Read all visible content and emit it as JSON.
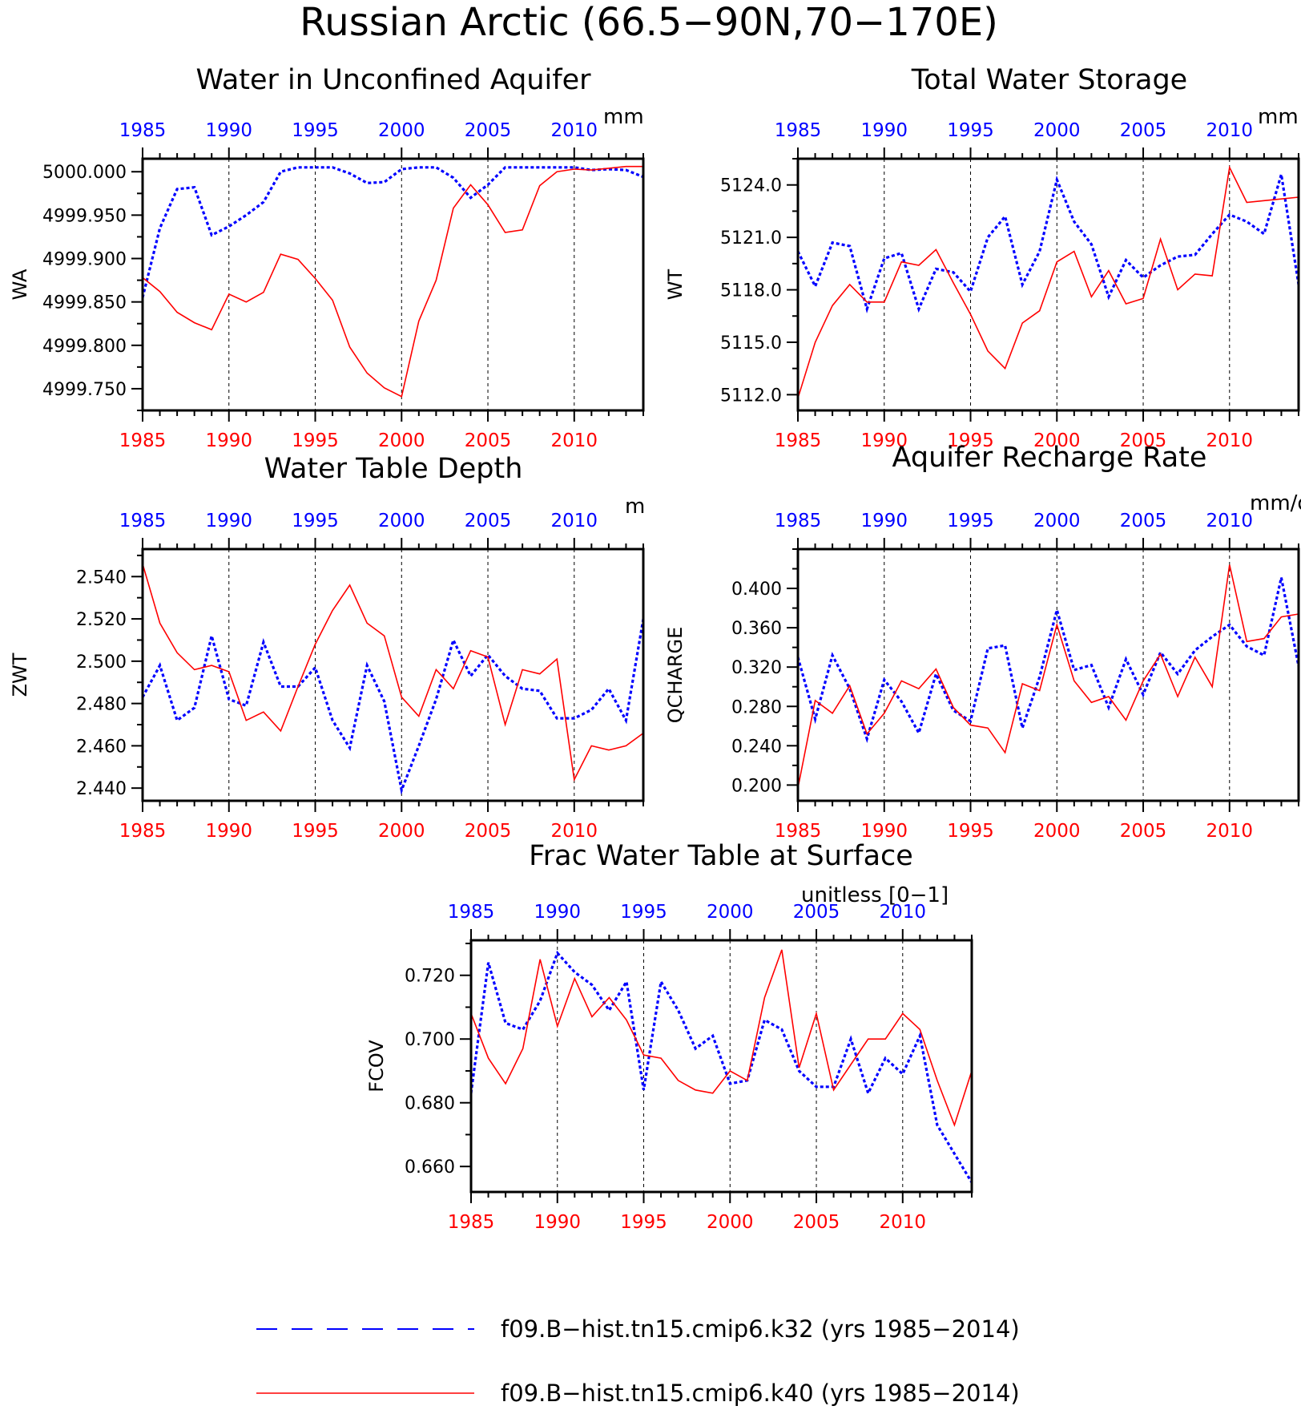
{
  "figure": {
    "title": "Russian Arctic (66.5−90N,70−170E)"
  },
  "legend": {
    "placement": "bottom",
    "entries": [
      {
        "label": "f09.B−hist.tn15.cmip6.k32 (yrs 1985−2014)",
        "color": "#0000ff",
        "style": "dashed"
      },
      {
        "label": "f09.B−hist.tn15.cmip6.k40 (yrs 1985−2014)",
        "color": "#ff0000",
        "style": "solid"
      }
    ]
  },
  "chart_data": [
    {
      "type": "line",
      "title": "Water in Unconfined Aquifer",
      "ylabel": "WA",
      "units": "mm",
      "xlim": [
        1985,
        2014
      ],
      "ylim": [
        4999.725,
        5000.015
      ],
      "yticks": [
        4999.75,
        4999.8,
        4999.85,
        4999.9,
        4999.95,
        5000.0
      ],
      "yticklabels": [
        "4999.750",
        "4999.800",
        "4999.850",
        "4999.900",
        "4999.950",
        "5000.000"
      ],
      "xticks": [
        1985,
        1990,
        1995,
        2000,
        2005,
        2010
      ],
      "xticklabels": [
        "1985",
        "1990",
        "1995",
        "2000",
        "2005",
        "2010"
      ],
      "grid": "vertical dashed at major x ticks",
      "series": [
        {
          "color": "#0000ff",
          "dashed": true,
          "values": [
            4999.855,
            4999.935,
            4999.98,
            4999.982,
            4999.927,
            4999.937,
            4999.95,
            4999.965,
            5000.0,
            5000.005,
            5000.005,
            5000.005,
            4999.998,
            4999.987,
            4999.988,
            5000.003,
            5000.005,
            5000.005,
            4999.993,
            4999.97,
            4999.985,
            5000.005,
            5000.005,
            5000.005,
            5000.005,
            5000.005,
            5000.002,
            5000.003,
            5000.002,
            4999.994
          ]
        },
        {
          "color": "#ff0000",
          "dashed": false,
          "values": [
            4999.878,
            4999.862,
            4999.838,
            4999.826,
            4999.818,
            4999.859,
            4999.85,
            4999.861,
            4999.905,
            4999.899,
            4999.877,
            4999.852,
            4999.798,
            4999.768,
            4999.751,
            4999.741,
            4999.828,
            4999.875,
            4999.958,
            4999.985,
            4999.962,
            4999.93,
            4999.933,
            4999.984,
            5000.0,
            5000.003,
            5000.002,
            5000.004,
            5000.006,
            5000.006
          ]
        }
      ]
    },
    {
      "type": "line",
      "title": "Total Water Storage",
      "ylabel": "WT",
      "units": "mm",
      "xlim": [
        1985,
        2014
      ],
      "ylim": [
        5111.1,
        5125.5
      ],
      "yticks": [
        5112,
        5115,
        5118,
        5121,
        5124
      ],
      "yticklabels": [
        "5112.0",
        "5115.0",
        "5118.0",
        "5121.0",
        "5124.0"
      ],
      "xticks": [
        1985,
        1990,
        1995,
        2000,
        2005,
        2010
      ],
      "xticklabels": [
        "1985",
        "1990",
        "1995",
        "2000",
        "2005",
        "2010"
      ],
      "grid": "vertical dashed at major x ticks",
      "series": [
        {
          "color": "#0000ff",
          "dashed": true,
          "values": [
            5120.2,
            5118.2,
            5120.7,
            5120.5,
            5116.9,
            5119.8,
            5120.1,
            5116.9,
            5119.2,
            5119.0,
            5117.9,
            5121.0,
            5122.2,
            5118.3,
            5120.2,
            5124.3,
            5121.9,
            5120.6,
            5117.6,
            5119.7,
            5118.7,
            5119.4,
            5119.9,
            5120.0,
            5121.2,
            5122.3,
            5121.9,
            5121.2,
            5124.6,
            5118.3
          ]
        },
        {
          "color": "#ff0000",
          "dashed": false,
          "values": [
            5111.8,
            5115.0,
            5117.1,
            5118.3,
            5117.3,
            5117.3,
            5119.6,
            5119.4,
            5120.3,
            5118.4,
            5116.6,
            5114.5,
            5113.5,
            5116.1,
            5116.8,
            5119.6,
            5120.2,
            5117.6,
            5119.1,
            5117.2,
            5117.5,
            5120.9,
            5118.0,
            5118.9,
            5118.8,
            5125.0,
            5123.0,
            5123.1,
            5123.2,
            5123.3
          ]
        }
      ]
    },
    {
      "type": "line",
      "title": "Water Table Depth",
      "ylabel": "ZWT",
      "units": "m",
      "xlim": [
        1985,
        2014
      ],
      "ylim": [
        2.434,
        2.553
      ],
      "yticks": [
        2.44,
        2.46,
        2.48,
        2.5,
        2.52,
        2.54
      ],
      "yticklabels": [
        "2.440",
        "2.460",
        "2.480",
        "2.500",
        "2.520",
        "2.540"
      ],
      "xticks": [
        1985,
        1990,
        1995,
        2000,
        2005,
        2010
      ],
      "xticklabels": [
        "1985",
        "1990",
        "1995",
        "2000",
        "2005",
        "2010"
      ],
      "grid": "vertical dashed at major x ticks",
      "series": [
        {
          "color": "#0000ff",
          "dashed": true,
          "values": [
            2.483,
            2.498,
            2.472,
            2.478,
            2.512,
            2.482,
            2.479,
            2.509,
            2.488,
            2.488,
            2.497,
            2.472,
            2.459,
            2.498,
            2.481,
            2.439,
            2.46,
            2.482,
            2.51,
            2.493,
            2.503,
            2.493,
            2.487,
            2.486,
            2.473,
            2.473,
            2.477,
            2.487,
            2.472,
            2.52
          ]
        },
        {
          "color": "#ff0000",
          "dashed": false,
          "values": [
            2.546,
            2.518,
            2.504,
            2.496,
            2.498,
            2.495,
            2.472,
            2.476,
            2.467,
            2.488,
            2.508,
            2.524,
            2.536,
            2.518,
            2.512,
            2.483,
            2.474,
            2.496,
            2.487,
            2.505,
            2.502,
            2.47,
            2.496,
            2.494,
            2.501,
            2.444,
            2.46,
            2.458,
            2.46,
            2.466
          ]
        }
      ]
    },
    {
      "type": "line",
      "title": "Aquifer Recharge Rate",
      "ylabel": "QCHARGE",
      "units": "mm/d",
      "xlim": [
        1985,
        2014
      ],
      "ylim": [
        0.184,
        0.44
      ],
      "yticks": [
        0.2,
        0.24,
        0.28,
        0.32,
        0.36,
        0.4
      ],
      "yticklabels": [
        "0.200",
        "0.240",
        "0.280",
        "0.320",
        "0.360",
        "0.400"
      ],
      "xticks": [
        1985,
        1990,
        1995,
        2000,
        2005,
        2010
      ],
      "xticklabels": [
        "1985",
        "1990",
        "1995",
        "2000",
        "2005",
        "2010"
      ],
      "grid": "vertical dashed at major x ticks",
      "series": [
        {
          "color": "#0000ff",
          "dashed": true,
          "values": [
            0.33,
            0.267,
            0.332,
            0.298,
            0.247,
            0.307,
            0.285,
            0.253,
            0.313,
            0.276,
            0.265,
            0.339,
            0.342,
            0.258,
            0.31,
            0.378,
            0.317,
            0.322,
            0.279,
            0.328,
            0.292,
            0.335,
            0.313,
            0.337,
            0.351,
            0.363,
            0.341,
            0.332,
            0.411,
            0.321
          ]
        },
        {
          "color": "#ff0000",
          "dashed": false,
          "values": [
            0.197,
            0.286,
            0.273,
            0.301,
            0.252,
            0.273,
            0.306,
            0.298,
            0.318,
            0.279,
            0.261,
            0.258,
            0.233,
            0.303,
            0.296,
            0.363,
            0.306,
            0.284,
            0.29,
            0.266,
            0.306,
            0.333,
            0.29,
            0.33,
            0.3,
            0.424,
            0.346,
            0.349,
            0.371,
            0.374
          ]
        }
      ]
    },
    {
      "type": "line",
      "title": "Frac Water Table at Surface",
      "ylabel": "FCOV",
      "units": "unitless [0−1]",
      "xlim": [
        1985,
        2014
      ],
      "ylim": [
        0.652,
        0.731
      ],
      "yticks": [
        0.66,
        0.68,
        0.7,
        0.72
      ],
      "yticklabels": [
        "0.660",
        "0.680",
        "0.700",
        "0.720"
      ],
      "xticks": [
        1985,
        1990,
        1995,
        2000,
        2005,
        2010
      ],
      "xticklabels": [
        "1985",
        "1990",
        "1995",
        "2000",
        "2005",
        "2010"
      ],
      "grid": "vertical dashed at major x ticks",
      "series": [
        {
          "color": "#0000ff",
          "dashed": true,
          "values": [
            0.683,
            0.724,
            0.705,
            0.703,
            0.712,
            0.727,
            0.721,
            0.717,
            0.709,
            0.718,
            0.684,
            0.718,
            0.709,
            0.697,
            0.701,
            0.686,
            0.687,
            0.706,
            0.703,
            0.69,
            0.685,
            0.685,
            0.7,
            0.683,
            0.694,
            0.689,
            0.701,
            0.673,
            0.664,
            0.655
          ]
        },
        {
          "color": "#ff0000",
          "dashed": false,
          "values": [
            0.708,
            0.694,
            0.686,
            0.697,
            0.725,
            0.704,
            0.719,
            0.707,
            0.713,
            0.706,
            0.695,
            0.694,
            0.687,
            0.684,
            0.683,
            0.69,
            0.687,
            0.713,
            0.728,
            0.691,
            0.708,
            0.684,
            0.692,
            0.7,
            0.7,
            0.708,
            0.703,
            0.687,
            0.673,
            0.69
          ]
        }
      ]
    }
  ]
}
